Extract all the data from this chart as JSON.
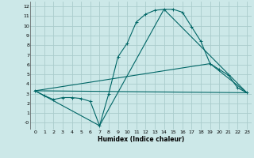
{
  "background_color": "#cce8e8",
  "grid_color": "#aacccc",
  "line_color": "#006666",
  "xlabel": "Humidex (Indice chaleur)",
  "xlim": [
    -0.5,
    23.5
  ],
  "ylim": [
    -0.7,
    12.5
  ],
  "xticks": [
    0,
    1,
    2,
    3,
    4,
    5,
    6,
    7,
    8,
    9,
    10,
    11,
    12,
    13,
    14,
    15,
    16,
    17,
    18,
    19,
    20,
    21,
    22,
    23
  ],
  "yticks": [
    0,
    1,
    2,
    3,
    4,
    5,
    6,
    7,
    8,
    9,
    10,
    11,
    12
  ],
  "ytick_labels": [
    "-0",
    "1",
    "2",
    "3",
    "4",
    "5",
    "6",
    "7",
    "8",
    "9",
    "10",
    "11",
    "12"
  ],
  "curve1_x": [
    0,
    1,
    2,
    3,
    4,
    5,
    6,
    7,
    8,
    9,
    10,
    11,
    12,
    13,
    14,
    15,
    16,
    17,
    18,
    19,
    20,
    21,
    22,
    23
  ],
  "curve1_y": [
    3.3,
    2.8,
    2.4,
    2.6,
    2.6,
    2.5,
    2.2,
    -0.3,
    3.0,
    6.8,
    8.2,
    10.4,
    11.2,
    11.6,
    11.7,
    11.7,
    11.4,
    9.9,
    8.4,
    6.1,
    5.5,
    4.9,
    3.6,
    3.1
  ],
  "curve2_x": [
    0,
    7,
    14,
    23
  ],
  "curve2_y": [
    3.3,
    -0.3,
    11.7,
    3.1
  ],
  "curve3_x": [
    0,
    23
  ],
  "curve3_y": [
    3.3,
    3.1
  ],
  "curve4_x": [
    0,
    19,
    23
  ],
  "curve4_y": [
    3.3,
    6.1,
    3.1
  ]
}
